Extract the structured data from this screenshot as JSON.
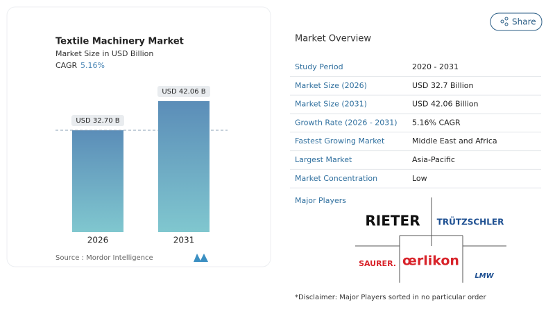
{
  "chart_data": {
    "type": "bar",
    "title": "Textile Machinery Market",
    "subtitle": "Market Size in USD Billion",
    "cagr": {
      "label": "CAGR",
      "value": "5.16%"
    },
    "categories": [
      "2026",
      "2031"
    ],
    "values": [
      32.7,
      42.06
    ],
    "value_labels": [
      "USD 32.70 B",
      "USD 42.06 B"
    ],
    "color": "#6a9fc2",
    "source": "Source :  Mordor Intelligence"
  },
  "share": "Share",
  "overview": {
    "title": "Market Overview",
    "rows": [
      [
        "Study Period",
        "2020 - 2031"
      ],
      [
        "Market Size (2026)",
        "USD 32.7 Billion"
      ],
      [
        "Market Size (2031)",
        "USD 42.06 Billion"
      ],
      [
        "Growth Rate (2026 - 2031)",
        "5.16% CAGR"
      ],
      [
        "Fastest Growing Market",
        "Middle East and Africa"
      ],
      [
        "Largest Market",
        "Asia-Pacific"
      ],
      [
        "Market Concentration",
        "Low"
      ]
    ]
  },
  "major_players": {
    "title": "Major Players",
    "logos": [
      "RIETER",
      "TRÜTZSCHLER",
      "SAURER.",
      "œrlikon",
      "LMW"
    ]
  },
  "disclaimer": "*Disclaimer: Major Players sorted in no particular order"
}
